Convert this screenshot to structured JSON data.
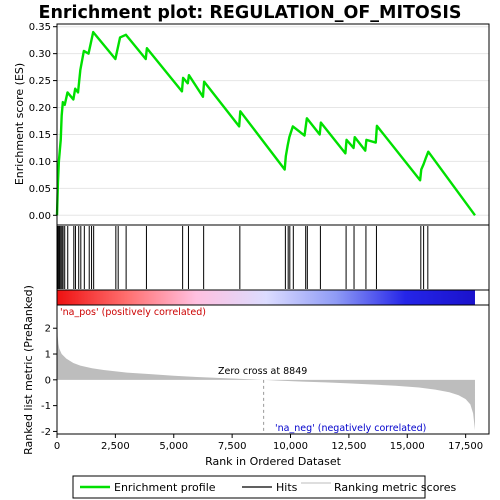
{
  "colors": {
    "enrichment_line": "#00e000",
    "hit_line": "#000000",
    "ranking_fill": "#bdbdbd",
    "pos_label": "#cc0000",
    "neg_label": "#0000cc",
    "band_stops": [
      "#ee1111",
      "#ff6f6f",
      "#ffc0e0",
      "#dcdcff",
      "#8f9bf5",
      "#2525e8",
      "#1a12cc"
    ]
  },
  "chart_data": [
    {
      "type": "line",
      "title": "Enrichment plot: REGULATION_OF_MITOSIS",
      "ylabel": "Enrichment score (ES)",
      "ylim": [
        -0.018,
        0.355
      ],
      "xlim": [
        0,
        18500
      ],
      "yticks": [
        "0.00",
        "0.05",
        "0.10",
        "0.15",
        "0.20",
        "0.25",
        "0.30",
        "0.35"
      ],
      "ytick_values": [
        0.0,
        0.05,
        0.1,
        0.15,
        0.2,
        0.25,
        0.3,
        0.35
      ],
      "series": [
        {
          "name": "Enrichment profile",
          "x": [
            0,
            40,
            80,
            120,
            160,
            200,
            250,
            330,
            450,
            700,
            780,
            900,
            1000,
            1150,
            1350,
            1450,
            1550,
            2500,
            2600,
            2700,
            2950,
            3800,
            3850,
            5350,
            5400,
            5600,
            5650,
            6250,
            6300,
            7800,
            7850,
            9750,
            9800,
            9880,
            9950,
            10100,
            10600,
            10700,
            11250,
            11300,
            12350,
            12400,
            12700,
            12750,
            13200,
            13250,
            13650,
            13700,
            15550,
            15600,
            15700,
            15800,
            15900,
            17900
          ],
          "values": [
            0.0,
            0.06,
            0.1,
            0.12,
            0.14,
            0.185,
            0.21,
            0.205,
            0.228,
            0.215,
            0.235,
            0.228,
            0.27,
            0.305,
            0.3,
            0.32,
            0.34,
            0.29,
            0.31,
            0.33,
            0.335,
            0.29,
            0.31,
            0.23,
            0.255,
            0.245,
            0.26,
            0.22,
            0.248,
            0.165,
            0.193,
            0.085,
            0.11,
            0.13,
            0.145,
            0.165,
            0.148,
            0.18,
            0.15,
            0.172,
            0.115,
            0.14,
            0.125,
            0.145,
            0.12,
            0.14,
            0.135,
            0.166,
            0.065,
            0.085,
            0.095,
            0.107,
            0.118,
            0.0
          ]
        }
      ],
      "hits": [
        30,
        70,
        110,
        160,
        210,
        260,
        330,
        460,
        720,
        790,
        930,
        1020,
        1170,
        1380,
        1480,
        1570,
        2520,
        2620,
        2960,
        3830,
        5380,
        5630,
        6280,
        7830,
        9780,
        9900,
        9970,
        10120,
        10650,
        10720,
        11280,
        12380,
        12720,
        13230,
        13680,
        15580,
        15700,
        15880
      ]
    },
    {
      "type": "area",
      "ylabel": "Ranked list metric (PreRanked)",
      "xlabel": "Rank in Ordered Dataset",
      "xlim": [
        0,
        18500
      ],
      "ylim": [
        -2.1,
        2.9
      ],
      "xticks": [
        "0",
        "2,500",
        "5,000",
        "7,500",
        "10,000",
        "12,500",
        "15,000",
        "17,500"
      ],
      "xtick_values": [
        0,
        2500,
        5000,
        7500,
        10000,
        12500,
        15000,
        17500
      ],
      "yticks": [
        "-2",
        "-1",
        "0",
        "1",
        "2"
      ],
      "ytick_values": [
        -2,
        -1,
        0,
        1,
        2
      ],
      "x": [
        0,
        30,
        60,
        100,
        200,
        400,
        700,
        1000,
        1500,
        2000,
        3000,
        4000,
        5000,
        6000,
        7000,
        8000,
        8849,
        9500,
        10500,
        11500,
        12500,
        13500,
        14500,
        15500,
        16200,
        16800,
        17200,
        17500,
        17700,
        17820,
        17900
      ],
      "values": [
        2.85,
        1.7,
        1.4,
        1.2,
        1.0,
        0.82,
        0.65,
        0.55,
        0.45,
        0.38,
        0.28,
        0.22,
        0.16,
        0.11,
        0.07,
        0.03,
        0.0,
        -0.03,
        -0.07,
        -0.1,
        -0.14,
        -0.18,
        -0.23,
        -0.3,
        -0.38,
        -0.48,
        -0.6,
        -0.75,
        -0.95,
        -1.3,
        -1.95
      ],
      "annotations": {
        "pos": "'na_pos' (positively correlated)",
        "neg": "'na_neg' (negatively correlated)",
        "zero": "Zero cross at 8849"
      },
      "zero_cross": 8849
    }
  ],
  "legend": {
    "items": [
      {
        "label": "Enrichment profile",
        "kind": "line"
      },
      {
        "label": "Hits",
        "kind": "hit"
      },
      {
        "label": "Ranking metric scores",
        "kind": "metric"
      }
    ]
  }
}
